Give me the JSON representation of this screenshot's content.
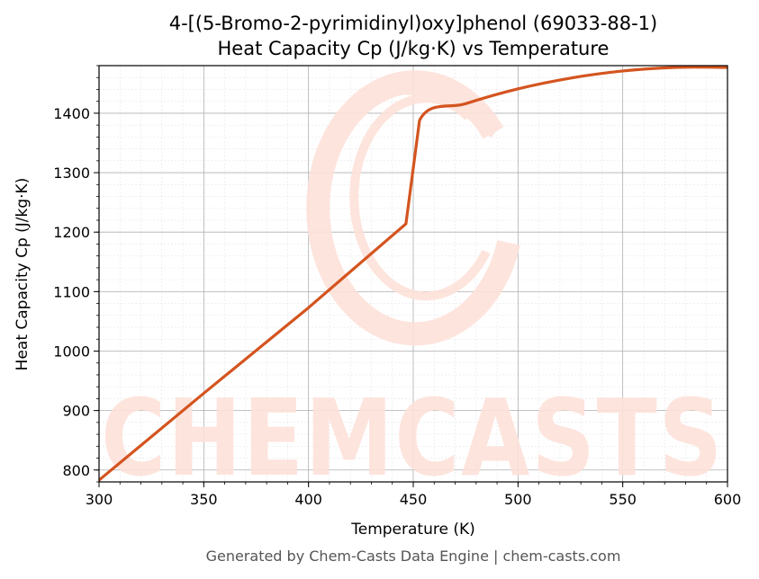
{
  "chart_data": {
    "type": "line",
    "title": "4-[(5-Bromo-2-pyrimidinyl)oxy]phenol (69033-88-1)",
    "subtitle": "Heat Capacity Cp (J/kg·K) vs Temperature",
    "xlabel": "Temperature (K)",
    "ylabel": "Heat Capacity Cp (J/kg·K)",
    "xlim": [
      300,
      600
    ],
    "ylim": [
      780,
      1480
    ],
    "x_ticks": [
      300,
      350,
      400,
      450,
      500,
      550,
      600
    ],
    "y_ticks": [
      800,
      900,
      1000,
      1100,
      1200,
      1300,
      1400
    ],
    "grid": true,
    "series": [
      {
        "x": [
          300,
          350,
          400,
          446.5,
          453,
          475,
          500,
          525,
          550,
          575,
          600
        ],
        "y": [
          783,
          929,
          1073,
          1214,
          1388,
          1416,
          1441,
          1459,
          1471,
          1477,
          1477
        ],
        "color": "#d4541f"
      }
    ],
    "footer": "Generated by Chem-Casts Data Engine | chem-casts.com",
    "watermark": "CHEMCASTS"
  }
}
